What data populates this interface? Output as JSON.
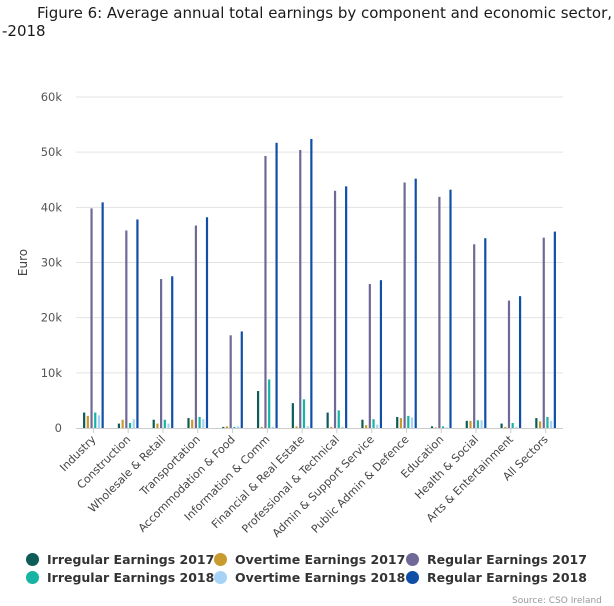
{
  "chart_data": {
    "type": "bar",
    "title_line1": "Figure 6: Average annual total earnings by component and economic sector,",
    "title_line2": "-2018",
    "ylabel": "Euro",
    "ylim": [
      0,
      60000
    ],
    "yticks": [
      0,
      10000,
      20000,
      30000,
      40000,
      50000,
      60000
    ],
    "ytick_labels": [
      "0",
      "10k",
      "20k",
      "30k",
      "40k",
      "50k",
      "60k"
    ],
    "grid": true,
    "legend_position": "bottom",
    "categories": [
      "Industry",
      "Construction",
      "Wholesale & Retail",
      "Transportation",
      "Accommodation & Food",
      "Information & Comm",
      "Financial & Real Estate",
      "Professional & Technical",
      "Admin & Support Service",
      "Public Admin & Defence",
      "Education",
      "Health & Social",
      "Arts & Entertainment",
      "All Sectors"
    ],
    "series": [
      {
        "name": "Irregular Earnings 2017",
        "color": "#0d5c57",
        "values": [
          2800,
          800,
          1500,
          1800,
          200,
          6700,
          4500,
          2800,
          1500,
          2000,
          300,
          1300,
          800,
          1800
        ]
      },
      {
        "name": "Irregular Earnings 2018",
        "color": "#17b3a3",
        "values": [
          2800,
          900,
          1500,
          2000,
          200,
          8800,
          5200,
          3200,
          1600,
          2200,
          300,
          1400,
          900,
          2000
        ]
      },
      {
        "name": "Overtime Earnings 2017",
        "color": "#c99a2e",
        "values": [
          2200,
          1500,
          800,
          1500,
          300,
          200,
          300,
          200,
          500,
          1800,
          100,
          1300,
          200,
          1200
        ]
      },
      {
        "name": "Overtime Earnings 2018",
        "color": "#a6d3f5",
        "values": [
          2300,
          1600,
          800,
          1600,
          300,
          200,
          300,
          200,
          600,
          1900,
          100,
          1400,
          200,
          1300
        ]
      },
      {
        "name": "Regular Earnings 2017",
        "color": "#6e6996",
        "values": [
          39800,
          35800,
          27000,
          36700,
          16800,
          49300,
          50400,
          43000,
          26100,
          44500,
          41900,
          33300,
          23100,
          34500
        ]
      },
      {
        "name": "Regular Earnings 2018",
        "color": "#0f4fa6",
        "values": [
          40900,
          37800,
          27500,
          38200,
          17500,
          51700,
          52400,
          43800,
          26800,
          45200,
          43200,
          34400,
          23900,
          35600
        ]
      }
    ],
    "legend_order": [
      "Irregular Earnings 2017",
      "Overtime Earnings 2017",
      "Regular Earnings 2017",
      "Irregular Earnings 2018",
      "Overtime Earnings 2018",
      "Regular Earnings 2018"
    ],
    "credit": "Source: CSO Ireland"
  }
}
